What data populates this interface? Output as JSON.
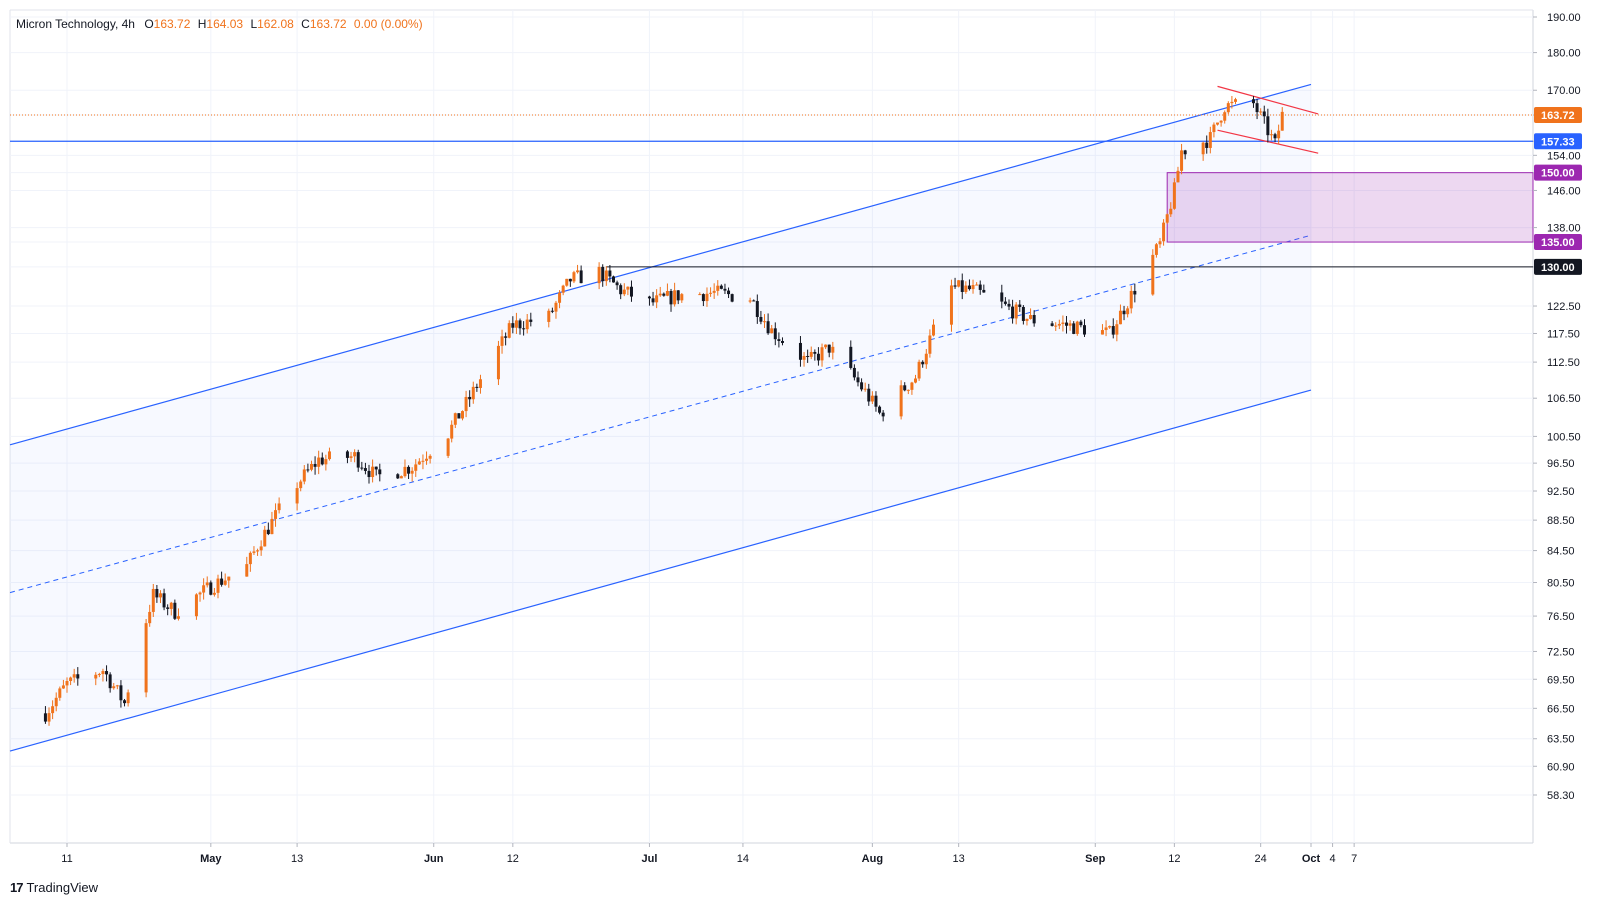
{
  "header": {
    "symbol": "Micron Technology",
    "interval": "4h",
    "open_label": "O",
    "open": "163.72",
    "high_label": "H",
    "high": "164.03",
    "low_label": "L",
    "low": "162.08",
    "close_label": "C",
    "close": "163.72",
    "change": "0.00 (0.00%)"
  },
  "brand": {
    "name": "TradingView",
    "logo_icon": "tradingview-logo-icon"
  },
  "colors": {
    "up": "#f0731c",
    "down": "#131722",
    "channel": "#2962ff",
    "zone": "#9c27b0",
    "flag": "#f23645",
    "last_price": "#f0731c"
  },
  "chart_data": {
    "type": "candlestick",
    "title": "Micron Technology, 4h",
    "ylim": [
      58.3,
      190
    ],
    "y_ticks": [
      "190.00",
      "180.00",
      "170.00",
      "163.72",
      "157.33",
      "154.00",
      "150.00",
      "146.00",
      "138.00",
      "135.00",
      "130.00",
      "122.50",
      "117.50",
      "112.50",
      "106.50",
      "100.50",
      "96.50",
      "92.50",
      "88.50",
      "84.50",
      "80.50",
      "76.50",
      "72.50",
      "69.50",
      "66.50",
      "63.50",
      "60.90",
      "58.30"
    ],
    "x_ticks": [
      "11",
      "May",
      "13",
      "Jun",
      "12",
      "Jul",
      "14",
      "Aug",
      "13",
      "Sep",
      "12",
      "24",
      "Oct",
      "4",
      "7"
    ],
    "price_labels": [
      {
        "label": "163.72",
        "value": 163.72,
        "role": "last-price"
      },
      {
        "label": "157.33",
        "value": 157.33,
        "role": "support"
      },
      {
        "label": "150.00",
        "value": 150.0,
        "role": "zone-top"
      },
      {
        "label": "135.00",
        "value": 135.0,
        "role": "zone-bottom"
      },
      {
        "label": "130.00",
        "value": 130.0,
        "role": "resistance"
      }
    ],
    "close_path": [
      [
        "Apr 8",
        66
      ],
      [
        "Apr 11",
        69
      ],
      [
        "Apr 16",
        70.5
      ],
      [
        "Apr 19",
        67
      ],
      [
        "Apr 23",
        79
      ],
      [
        "Apr 26",
        77
      ],
      [
        "May 1",
        80
      ],
      [
        "May 6",
        82.5
      ],
      [
        "May 8",
        86
      ],
      [
        "May 13",
        93.5
      ],
      [
        "May 16",
        97
      ],
      [
        "May 21",
        97.5
      ],
      [
        "May 24",
        94.5
      ],
      [
        "May 29",
        96
      ],
      [
        "Jun 3",
        101
      ],
      [
        "Jun 6",
        106.5
      ],
      [
        "Jun 12",
        119
      ],
      [
        "Jun 17",
        120.5
      ],
      [
        "Jun 20",
        127.5
      ],
      [
        "Jun 24",
        129
      ],
      [
        "Jun 27",
        125.5
      ],
      [
        "Jul 1",
        123
      ],
      [
        "Jul 5",
        124.5
      ],
      [
        "Jul 10",
        125
      ],
      [
        "Jul 15",
        124
      ],
      [
        "Jul 18",
        118
      ],
      [
        "Jul 23",
        112.5
      ],
      [
        "Jul 26",
        115
      ],
      [
        "Jul 31",
        107.5
      ],
      [
        "Aug 2",
        104
      ],
      [
        "Aug 7",
        110
      ],
      [
        "Aug 12",
        126
      ],
      [
        "Aug 15",
        125.5
      ],
      [
        "Aug 20",
        122
      ],
      [
        "Aug 23",
        120
      ],
      [
        "Aug 28",
        119
      ],
      [
        "Sep 3",
        117.5
      ],
      [
        "Sep 6",
        124.5
      ],
      [
        "Sep 10",
        134.5
      ],
      [
        "Sep 12",
        146
      ],
      [
        "Sep 13",
        155
      ],
      [
        "Sep 17",
        158
      ],
      [
        "Sep 19",
        166
      ],
      [
        "Sep 23",
        166.5
      ],
      [
        "Sep 26",
        156.5
      ],
      [
        "Sep 27",
        163.72
      ]
    ],
    "channel_upper": [
      [
        "Apr 4",
        99.5
      ],
      [
        "Sep 30",
        171
      ]
    ],
    "channel_mid": [
      [
        "Apr 4",
        79.5
      ],
      [
        "Sep 30",
        136
      ]
    ],
    "channel_lower": [
      [
        "Apr 4",
        62.5
      ],
      [
        "Sep 30",
        107.5
      ]
    ],
    "flag_upper": [
      [
        "Sep 18",
        171
      ],
      [
        "Oct 2",
        164
      ]
    ],
    "flag_lower": [
      [
        "Sep 18",
        160
      ],
      [
        "Oct 2",
        154.5
      ]
    ],
    "zone": {
      "from": "Sep 11",
      "top": 150,
      "bottom": 135
    },
    "resistance_line": {
      "from": "Jun 25",
      "value": 130
    },
    "support_line": {
      "value": 157.33
    },
    "last_price_line": {
      "value": 163.72
    }
  }
}
